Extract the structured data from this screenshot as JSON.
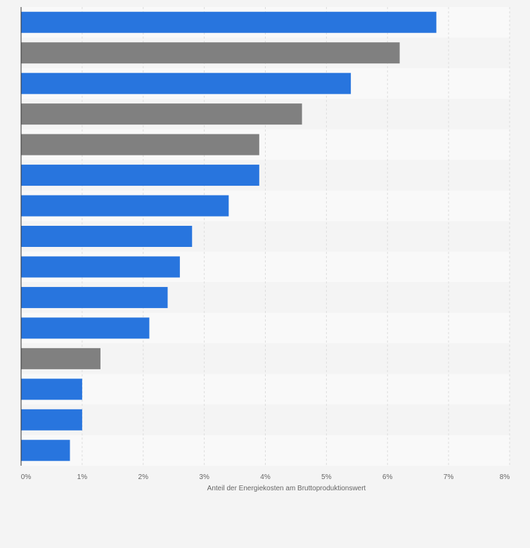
{
  "chart_data": {
    "type": "bar",
    "orientation": "horizontal",
    "title": "",
    "xlabel": "Anteil der Energiekosten am Bruttoproduktionswert",
    "ylabel": "",
    "xlim": [
      0,
      8
    ],
    "tick_labels": [
      "0%",
      "1%",
      "2%",
      "3%",
      "4%",
      "5%",
      "6%",
      "7%",
      "8%"
    ],
    "grid": true,
    "legend": "none",
    "categories": [
      "",
      "",
      "",
      "",
      "",
      "",
      "",
      "",
      "",
      "",
      "",
      "",
      "",
      "",
      ""
    ],
    "values": [
      6.8,
      6.2,
      5.4,
      4.6,
      3.9,
      3.9,
      3.4,
      2.8,
      2.6,
      2.4,
      2.1,
      1.3,
      1.0,
      1.0,
      0.8
    ],
    "bar_colors": [
      "blue",
      "gray",
      "blue",
      "gray",
      "gray",
      "blue",
      "blue",
      "blue",
      "blue",
      "blue",
      "blue",
      "gray",
      "blue",
      "blue",
      "blue"
    ]
  },
  "colors": {
    "blue": "#2875de",
    "gray": "#808080",
    "page_background": "#f4f4f4",
    "band_light": "#f9f9f9",
    "band_dark": "#f4f4f4",
    "grid": "#dddddd",
    "axis": "#333333"
  }
}
